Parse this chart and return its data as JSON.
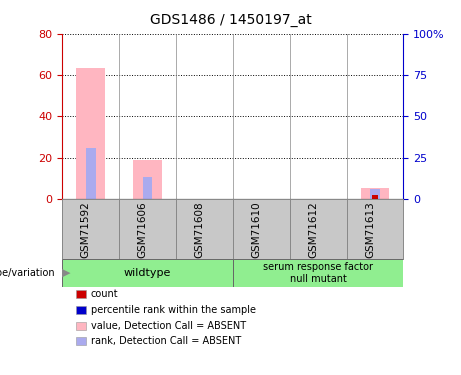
{
  "title": "GDS1486 / 1450197_at",
  "samples": [
    "GSM71592",
    "GSM71606",
    "GSM71608",
    "GSM71610",
    "GSM71612",
    "GSM71613"
  ],
  "pink_bars": [
    63.5,
    19.0,
    0.0,
    0.0,
    0.0,
    5.0
  ],
  "blue_bars": [
    30.5,
    13.0,
    0.0,
    0.0,
    0.0,
    6.0
  ],
  "red_bars": [
    0.0,
    0.0,
    0.0,
    0.0,
    0.0,
    2.0
  ],
  "ylim_left": [
    0,
    80
  ],
  "ylim_right": [
    0,
    100
  ],
  "yticks_left": [
    0,
    20,
    40,
    60,
    80
  ],
  "ytick_labels_left": [
    "0",
    "20",
    "40",
    "60",
    "80"
  ],
  "yticks_right_vals": [
    0,
    25,
    50,
    75,
    100
  ],
  "ytick_labels_right": [
    "0",
    "25",
    "50",
    "75",
    "100%"
  ],
  "left_axis_color": "#cc0000",
  "right_axis_color": "#0000cc",
  "pink_color": "#FFB6C1",
  "blue_color": "#AAAAEE",
  "red_color": "#CC0000",
  "blue_legend_color": "#0000CC",
  "bar_width": 0.5,
  "legend_items": [
    {
      "label": "count",
      "color": "#CC0000"
    },
    {
      "label": "percentile rank within the sample",
      "color": "#0000CC"
    },
    {
      "label": "value, Detection Call = ABSENT",
      "color": "#FFB6C1"
    },
    {
      "label": "rank, Detection Call = ABSENT",
      "color": "#AAAAEE"
    }
  ],
  "genotype_label": "genotype/variation",
  "wildtype_label": "wildtype",
  "mutant_label": "serum response factor\nnull mutant",
  "group_color": "#90EE90",
  "sample_box_color": "#C8C8C8",
  "bg_color": "#FFFFFF"
}
